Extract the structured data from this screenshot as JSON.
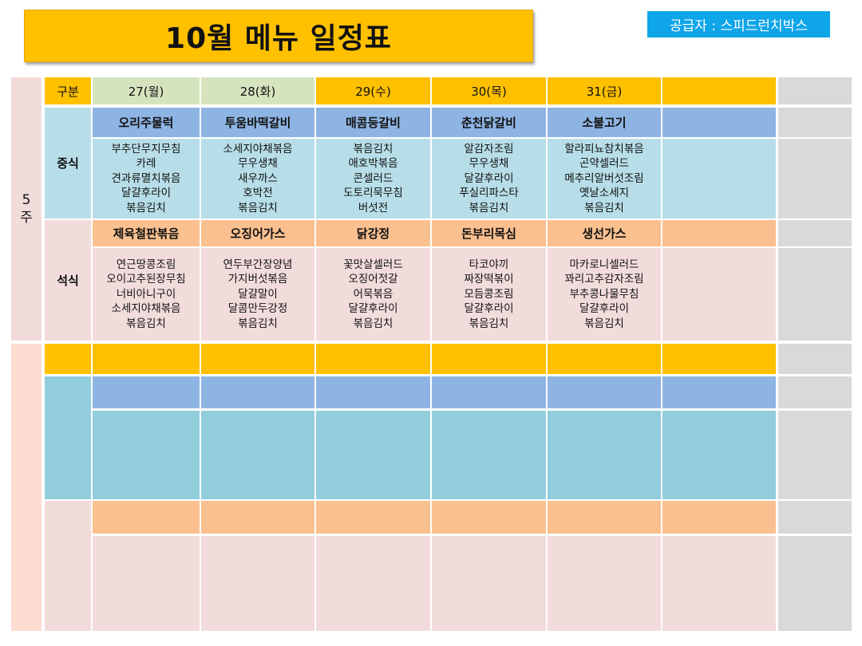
{
  "title": "10월  메뉴 일정표",
  "supplier": "공급자 : 스피드런치박스",
  "week": {
    "num": "5",
    "unit": "주"
  },
  "header": {
    "label": "구분",
    "days": [
      "27(월)",
      "28(화)",
      "29(수)",
      "30(목)",
      "31(금)",
      ""
    ]
  },
  "lunch": {
    "label": "중식",
    "mains": [
      "오리주물럭",
      "투움바떡갈비",
      "매콤등갈비",
      "춘천닭갈비",
      "소불고기",
      ""
    ],
    "sides": [
      [
        "부추단무지무침",
        "카레",
        "견과류멸치볶음",
        "달걀후라이",
        "볶음김치"
      ],
      [
        "소세지야채볶음",
        "무우생채",
        "새우까스",
        "호박전",
        "볶음김치"
      ],
      [
        "볶음김치",
        "애호박볶음",
        "콘셀러드",
        "도토리묵무침",
        "버섯전"
      ],
      [
        "알감자조림",
        "무우생채",
        "달걀후라이",
        "푸실리파스타",
        "볶음김치"
      ],
      [
        "할라피뇨참치볶음",
        "곤약셀러드",
        "메추리알버섯조림",
        "옛날소세지",
        "볶음김치"
      ],
      []
    ]
  },
  "dinner": {
    "label": "석식",
    "mains": [
      "제육철판볶음",
      "오징어가스",
      "닭강정",
      "돈부리목심",
      "생선가스",
      ""
    ],
    "sides": [
      [
        "연근땅콩조림",
        "오이고추된장무침",
        "너비아니구이",
        "소세지야채볶음",
        "볶음김치"
      ],
      [
        "연두부간장양념",
        "가지버섯볶음",
        "달걀말이",
        "달콤만두강정",
        "볶음김치"
      ],
      [
        "꽃맛살셀러드",
        "오징어젓갈",
        "어묵볶음",
        "달걀후라이",
        "볶음김치"
      ],
      [
        "타코야끼",
        "짜장떡볶이",
        "모듬콩조림",
        "달걀후라이",
        "볶음김치"
      ],
      [
        "마카로니셀러드",
        "꽈리고추감자조림",
        "부추콩나물무침",
        "달걀후라이",
        "볶음김치"
      ],
      []
    ]
  },
  "colors": {
    "gold": "#FFC000",
    "blue": "#8EB4E3",
    "teal": "#B7DEE8",
    "orange": "#FAC090",
    "pink": "#F2DCDB",
    "supplier": "#0EA5E9"
  }
}
